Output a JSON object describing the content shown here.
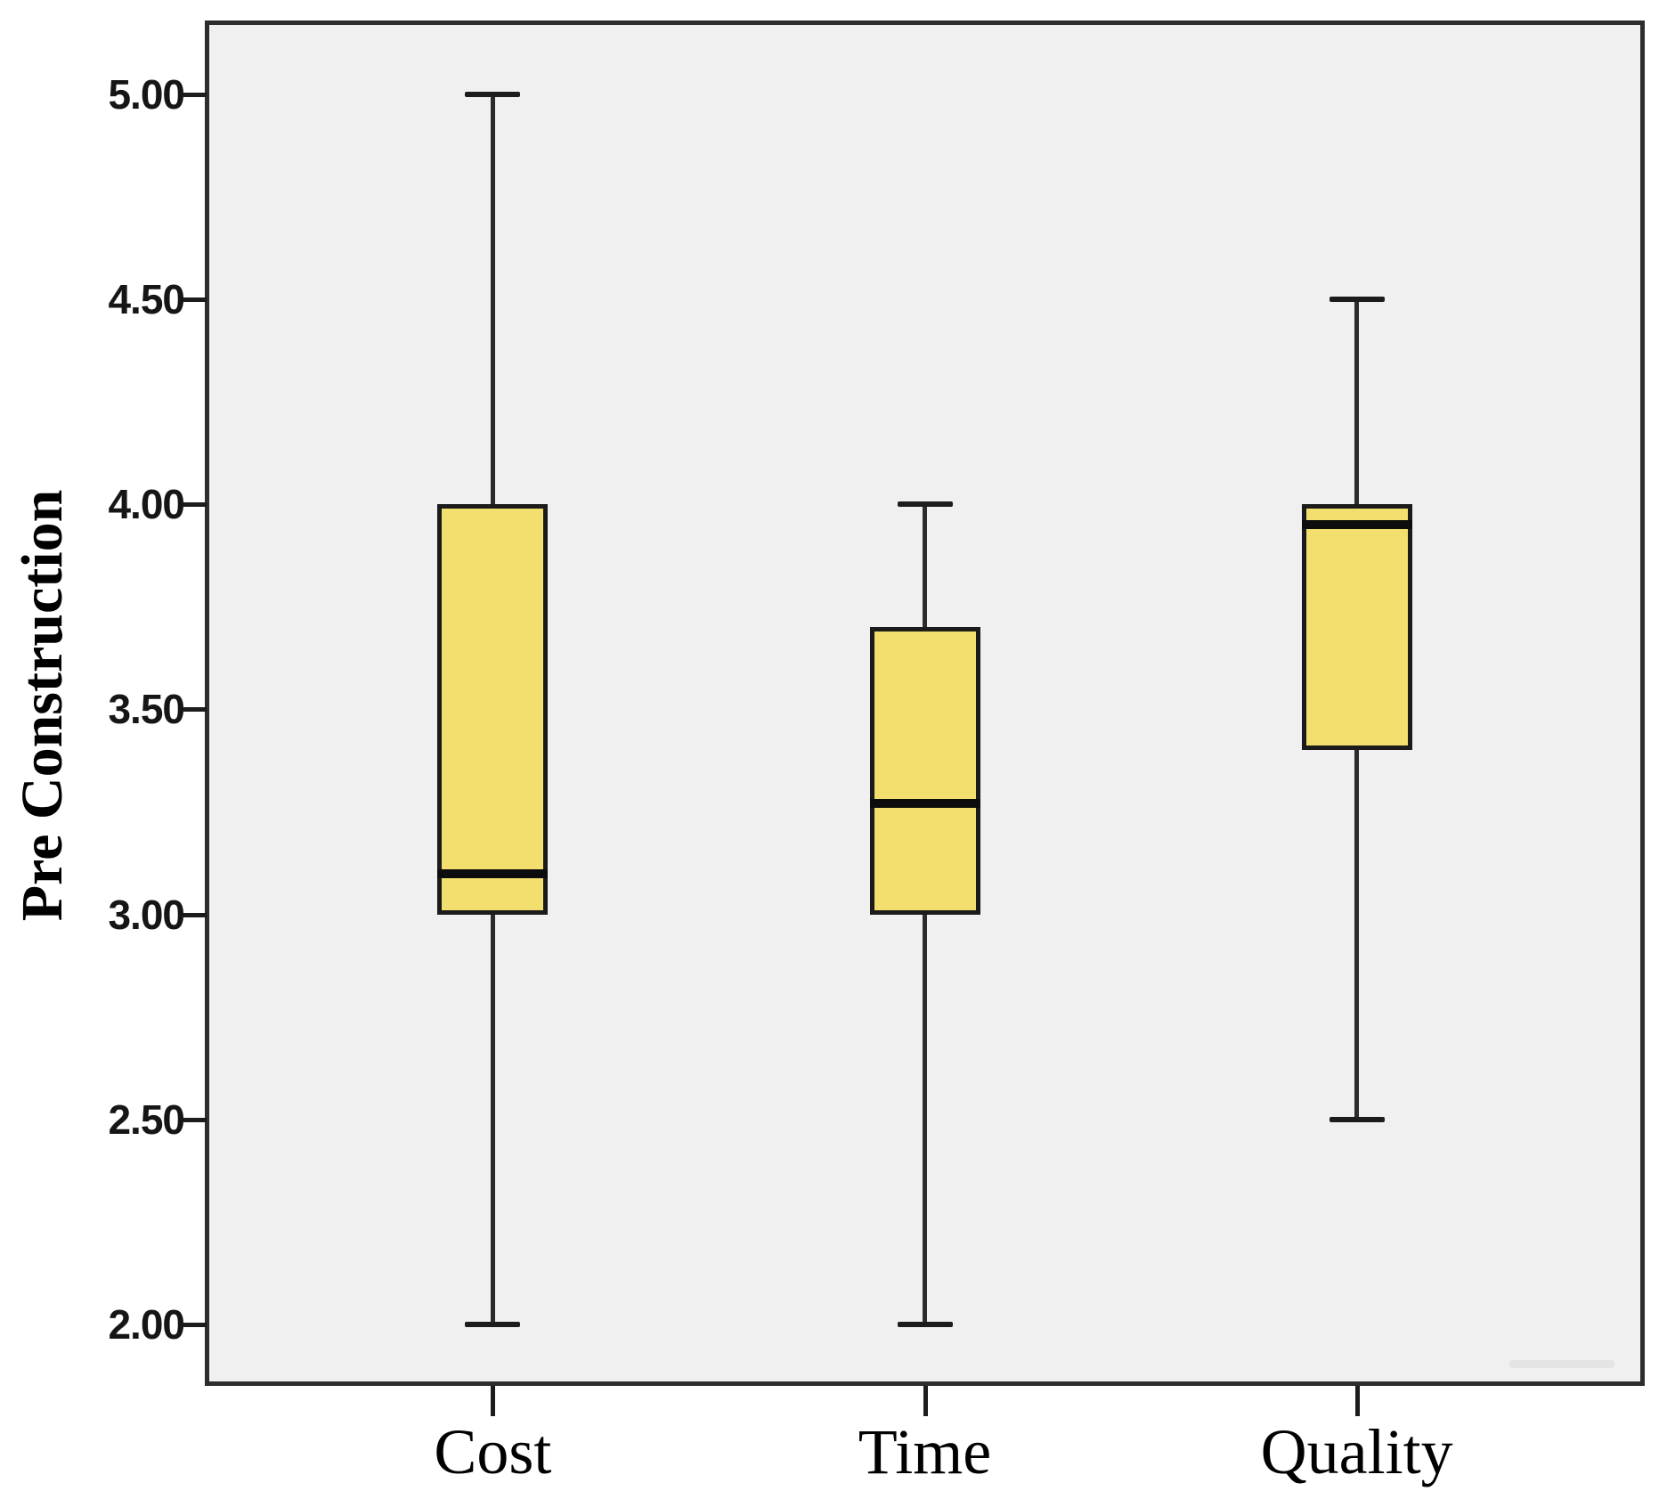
{
  "chart_data": {
    "type": "boxplot",
    "title": "",
    "ylabel": "Pre Construction",
    "xlabel": "",
    "categories": [
      "Cost",
      "Time",
      "Quality"
    ],
    "series": [
      {
        "name": "Cost",
        "whisker_low": 2.0,
        "q1": 3.0,
        "median": 3.1,
        "q3": 4.0,
        "whisker_high": 5.0
      },
      {
        "name": "Time",
        "whisker_low": 2.0,
        "q1": 3.0,
        "median": 3.27,
        "q3": 3.7,
        "whisker_high": 4.0
      },
      {
        "name": "Quality",
        "whisker_low": 2.5,
        "q1": 3.4,
        "median": 3.95,
        "q3": 4.0,
        "whisker_high": 4.5
      }
    ],
    "y_ticks": [
      "5.00",
      "4.50",
      "4.00",
      "3.50",
      "3.00",
      "2.50",
      "2.00"
    ],
    "ylim": [
      1.85,
      5.18
    ],
    "grid": false,
    "legend": "none",
    "colors": {
      "box_fill": "#f2df6e",
      "box_border": "#1b1b1b",
      "median": "#0d0d0d",
      "whisker": "#2b2b2b",
      "plot_background": "#f0f0f0",
      "frame": "#2d2d2d",
      "text": "#000000"
    }
  }
}
